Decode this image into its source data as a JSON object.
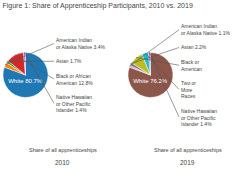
{
  "chart_data": [
    {
      "type": "pie",
      "title": "Figure 1: Share of Apprenticeship Participants, 2010 vs. 2019",
      "subtitle": [
        "Share of all apprenticeships",
        "2010"
      ],
      "categories": [
        "White 80.7%",
        "American Indian\nor Alaska Native 3.4%",
        "Asian 1.7%",
        "Black or African\nAmerican 12.8%",
        "Native Hawaiian\nor Other Pacific\nIslander 1.4%"
      ],
      "values": [
        80.7,
        3.4,
        1.7,
        12.8,
        1.4
      ]
    },
    {
      "type": "pie",
      "subtitle": [
        "Share of all apprenticeships",
        "2019"
      ],
      "categories": [
        "White 76.2%",
        "American Indian\nor Alaska Native 1.1%",
        "Asian 2.2%",
        "Black or\nAmerican",
        "Two or\nMore\nRaces",
        "Native Hawaiian\nor Other Pacific\nIslander 1.4%"
      ],
      "values": [
        76.2,
        1.1,
        2.2,
        9.0,
        4.5,
        1.4
      ]
    }
  ]
}
